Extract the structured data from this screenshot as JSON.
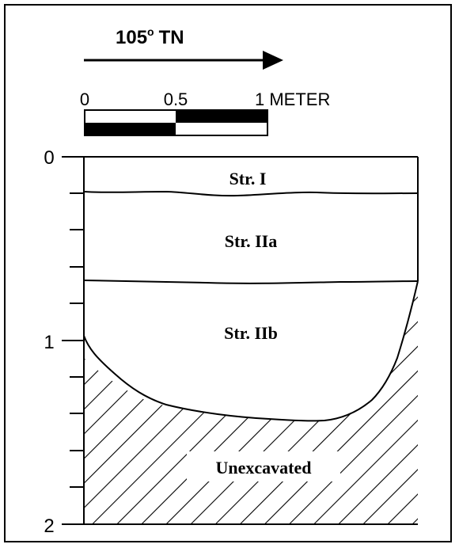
{
  "orientation": {
    "label": "105",
    "degree_mark": "o",
    "suffix": "TN"
  },
  "scale_bar": {
    "ticks": [
      "0",
      "0.5",
      "1 METER"
    ]
  },
  "depth_axis": {
    "labels": [
      "0",
      "1",
      "2"
    ]
  },
  "strata": {
    "str_1": "Str. I",
    "str_2a": "Str. IIa",
    "str_2b": "Str. IIb",
    "unexcavated": "Unexcavated"
  },
  "colors": {
    "ink": "#000000",
    "background": "#ffffff"
  }
}
